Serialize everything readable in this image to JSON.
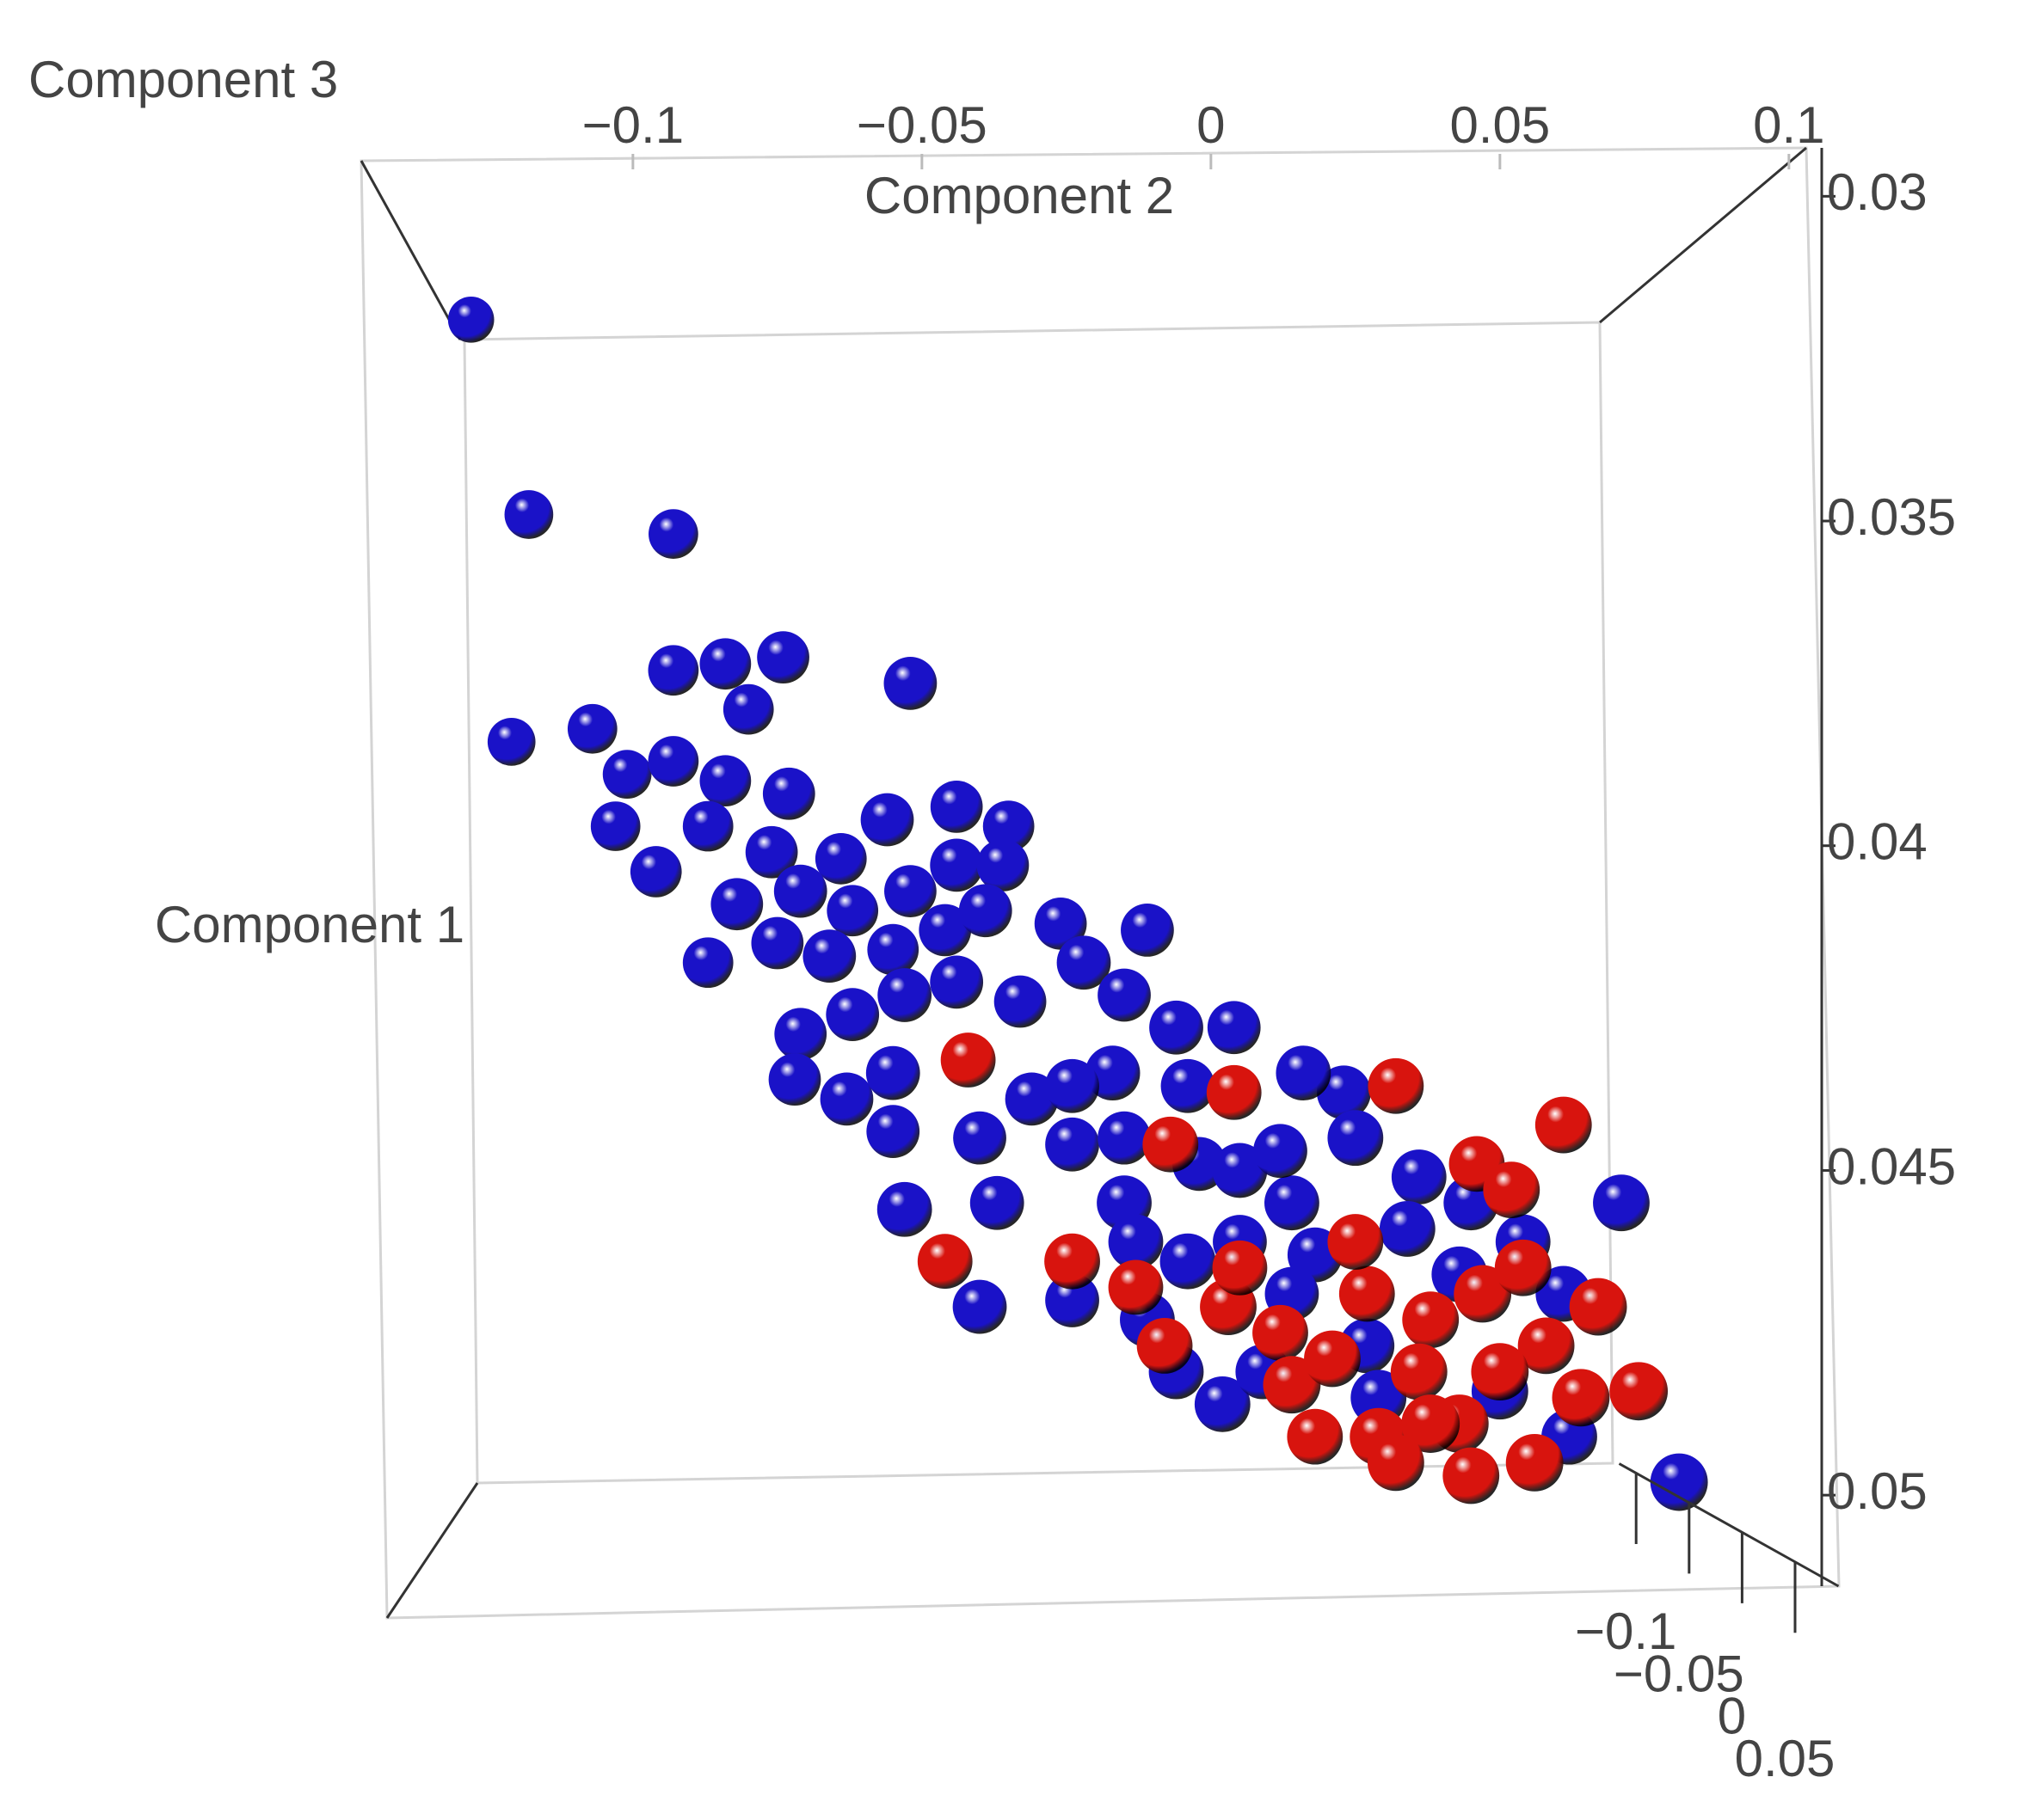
{
  "chart_data": {
    "type": "scatter3d",
    "x_label": "Component 2",
    "y_label": "Component 3",
    "z_label": "Component 1",
    "xlim": [
      -0.147,
      0.103
    ],
    "ylim": [
      0.0294,
      0.0516
    ],
    "zlim": [
      -0.116,
      0.091
    ],
    "y_inverted": true,
    "xticks": [
      {
        "value": -0.1,
        "label": "−0.1"
      },
      {
        "value": -0.05,
        "label": "−0.05"
      },
      0,
      0.05,
      0.1
    ],
    "yticks": [
      0.03,
      0.035,
      0.04,
      0.045,
      0.05
    ],
    "zticks": [
      {
        "value": -0.1,
        "label": "−0.1"
      },
      {
        "value": -0.05,
        "label": "−0.05"
      },
      0,
      0.05
    ],
    "series": [
      {
        "color": "#1a12c8",
        "x": [
          -0.128,
          -0.118,
          -0.093,
          -0.121,
          -0.107,
          -0.093,
          -0.084,
          -0.074,
          -0.052,
          -0.08,
          -0.101,
          -0.093,
          -0.084,
          -0.073,
          -0.103,
          -0.096,
          -0.087,
          -0.076,
          -0.064,
          -0.056,
          -0.044,
          -0.035,
          -0.082,
          -0.071,
          -0.062,
          -0.052,
          -0.044,
          -0.036,
          -0.087,
          -0.075,
          -0.066,
          -0.055,
          -0.046,
          -0.039,
          -0.026,
          -0.011,
          -0.071,
          -0.062,
          -0.053,
          -0.044,
          -0.033,
          -0.022,
          -0.015,
          -0.006,
          0.004,
          -0.072,
          -0.063,
          -0.055,
          -0.055,
          -0.053,
          -0.04,
          -0.04,
          -0.037,
          -0.031,
          -0.024,
          -0.017,
          -0.024,
          -0.015,
          -0.004,
          -0.013,
          -0.002,
          0.005,
          -0.024,
          -0.011,
          -0.004,
          0.005,
          0.014,
          0.023,
          0.016,
          0.025,
          0.018,
          0.012,
          0.036,
          0.034,
          0.045,
          0.043,
          0.054,
          0.061,
          0.071,
          -0.006,
          0.002,
          0.027,
          0.029,
          0.05,
          0.062,
          0.081,
          0.009,
          0.014,
          -0.015
        ],
        "y": [
          0.0319,
          0.0349,
          0.0352,
          0.0384,
          0.0382,
          0.0373,
          0.0372,
          0.0371,
          0.0375,
          0.0379,
          0.0389,
          0.0387,
          0.039,
          0.0392,
          0.0397,
          0.0404,
          0.0397,
          0.0401,
          0.0402,
          0.0396,
          0.0394,
          0.0397,
          0.0409,
          0.0407,
          0.041,
          0.0407,
          0.0403,
          0.0403,
          0.0418,
          0.0415,
          0.0417,
          0.0416,
          0.0413,
          0.041,
          0.0412,
          0.0413,
          0.0429,
          0.0426,
          0.0423,
          0.0421,
          0.0424,
          0.0418,
          0.0423,
          0.0428,
          0.0428,
          0.0436,
          0.0439,
          0.0435,
          0.0444,
          0.0456,
          0.0471,
          0.0445,
          0.0455,
          0.0439,
          0.0446,
          0.0435,
          0.0437,
          0.0455,
          0.0437,
          0.0461,
          0.0449,
          0.045,
          0.047,
          0.0473,
          0.0464,
          0.0461,
          0.0455,
          0.0438,
          0.0435,
          0.0445,
          0.0463,
          0.0447,
          0.0451,
          0.0459,
          0.0455,
          0.0466,
          0.0461,
          0.0469,
          0.0455,
          0.0481,
          0.0486,
          0.0477,
          0.0485,
          0.0484,
          0.0491,
          0.0498,
          0.0481,
          0.0469,
          0.0445
        ],
        "z": [
          -0.09,
          -0.06,
          -0.05,
          -0.07,
          -0.05,
          -0.04,
          -0.03,
          -0.02,
          -0.01,
          -0.04,
          -0.06,
          -0.04,
          -0.03,
          -0.02,
          -0.05,
          -0.03,
          -0.04,
          -0.02,
          -0.03,
          -0.01,
          -0.02,
          -0.03,
          -0.02,
          -0.01,
          -0.03,
          -0.02,
          -0.01,
          -0.02,
          -0.04,
          -0.02,
          -0.01,
          -0.03,
          -0.02,
          -0.01,
          -0.02,
          -0.01,
          -0.02,
          -0.01,
          0.0,
          -0.01,
          -0.02,
          0.0,
          -0.01,
          0.0,
          -0.01,
          -0.02,
          -0.01,
          0.0,
          -0.01,
          0.01,
          0.0,
          -0.01,
          0.0,
          -0.01,
          0.0,
          0.01,
          0.0,
          0.01,
          0.0,
          0.01,
          0.0,
          0.01,
          0.0,
          0.01,
          0.02,
          0.0,
          0.01,
          0.0,
          0.01,
          0.02,
          0.01,
          0.0,
          0.01,
          0.02,
          0.01,
          0.02,
          0.01,
          0.02,
          0.03,
          0.01,
          0.02,
          0.01,
          0.02,
          0.03,
          0.02,
          0.04,
          0.01,
          0.0,
          -0.01
        ]
      },
      {
        "color": "#d8140e",
        "x": [
          -0.042,
          -0.007,
          0.004,
          0.032,
          0.061,
          0.046,
          0.052,
          -0.046,
          -0.024,
          -0.013,
          0.003,
          0.012,
          0.014,
          0.021,
          0.027,
          0.038,
          0.047,
          0.054,
          0.067,
          0.058,
          0.018,
          0.029,
          0.036,
          0.043,
          0.056,
          0.074,
          0.064,
          0.045,
          0.05,
          0.038,
          0.025,
          0.005,
          0.032,
          -0.008
        ],
        "y": [
          0.0433,
          0.0446,
          0.0438,
          0.0437,
          0.0443,
          0.0449,
          0.0453,
          0.0464,
          0.0464,
          0.0468,
          0.0471,
          0.0475,
          0.0483,
          0.0479,
          0.0469,
          0.0473,
          0.0469,
          0.0465,
          0.0471,
          0.0477,
          0.0491,
          0.0491,
          0.0481,
          0.0489,
          0.0495,
          0.0484,
          0.0485,
          0.0497,
          0.0481,
          0.0489,
          0.0461,
          0.0465,
          0.0495,
          0.0477
        ],
        "z": [
          0.01,
          0.02,
          0.01,
          0.02,
          0.03,
          0.02,
          0.03,
          0.01,
          0.02,
          0.01,
          0.03,
          0.02,
          0.04,
          0.03,
          0.02,
          0.03,
          0.04,
          0.03,
          0.04,
          0.03,
          0.02,
          0.04,
          0.03,
          0.05,
          0.04,
          0.05,
          0.04,
          0.03,
          0.04,
          0.05,
          0.02,
          0.01,
          0.03,
          0.02
        ]
      }
    ]
  }
}
